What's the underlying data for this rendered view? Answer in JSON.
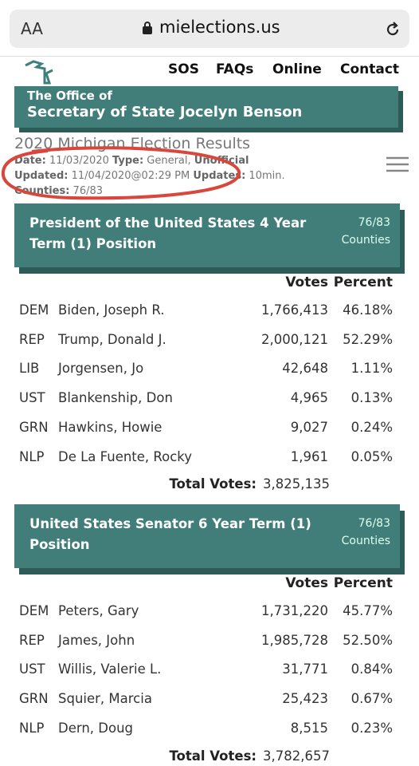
{
  "browser": {
    "text_size": "AA",
    "url": "mielections.us"
  },
  "nav": [
    "SOS",
    "FAQs",
    "Online",
    "Contact"
  ],
  "banner": {
    "line1": "The Office of",
    "line2": "Secretary of State Jocelyn Benson"
  },
  "header": {
    "title": "2020 Michigan Election Results",
    "date_label": "Date:",
    "date": "11/03/2020",
    "type_label": "Type:",
    "type": "General,",
    "status": "Unofficial",
    "updated_label": "Updated:",
    "updated": "11/04/2020@02:29 PM",
    "updates_label": "Updates:",
    "updates": "10min.",
    "counties_label": "Counties:",
    "counties": "76/83"
  },
  "races": [
    {
      "title": "President of the United States 4 Year Term (1) Position",
      "counties": "76/83",
      "counties_label": "Counties",
      "columns": [
        "Votes",
        "Percent"
      ],
      "rows": [
        [
          "DEM",
          "Biden, Joseph R.",
          "1,766,413",
          "46.18%"
        ],
        [
          "REP",
          "Trump, Donald J.",
          "2,000,121",
          "52.29%"
        ],
        [
          "LIB",
          "Jorgensen, Jo",
          "42,648",
          "1.11%"
        ],
        [
          "UST",
          "Blankenship, Don",
          "4,965",
          "0.13%"
        ],
        [
          "GRN",
          "Hawkins, Howie",
          "9,027",
          "0.24%"
        ],
        [
          "NLP",
          "De La Fuente, Rocky",
          "1,961",
          "0.05%"
        ]
      ],
      "total_label": "Total Votes:",
      "total": "3,825,135"
    },
    {
      "title": "United States Senator 6 Year Term (1) Position",
      "counties": "76/83",
      "counties_label": "Counties",
      "columns": [
        "Votes",
        "Percent"
      ],
      "rows": [
        [
          "DEM",
          "Peters, Gary",
          "1,731,220",
          "45.77%"
        ],
        [
          "REP",
          "James, John",
          "1,985,728",
          "52.50%"
        ],
        [
          "UST",
          "Willis, Valerie L.",
          "31,771",
          "0.84%"
        ],
        [
          "GRN",
          "Squier, Marcia",
          "25,423",
          "0.67%"
        ],
        [
          "NLP",
          "Dern, Doug",
          "8,515",
          "0.23%"
        ]
      ],
      "total_label": "Total Votes:",
      "total": "3,782,657"
    }
  ]
}
